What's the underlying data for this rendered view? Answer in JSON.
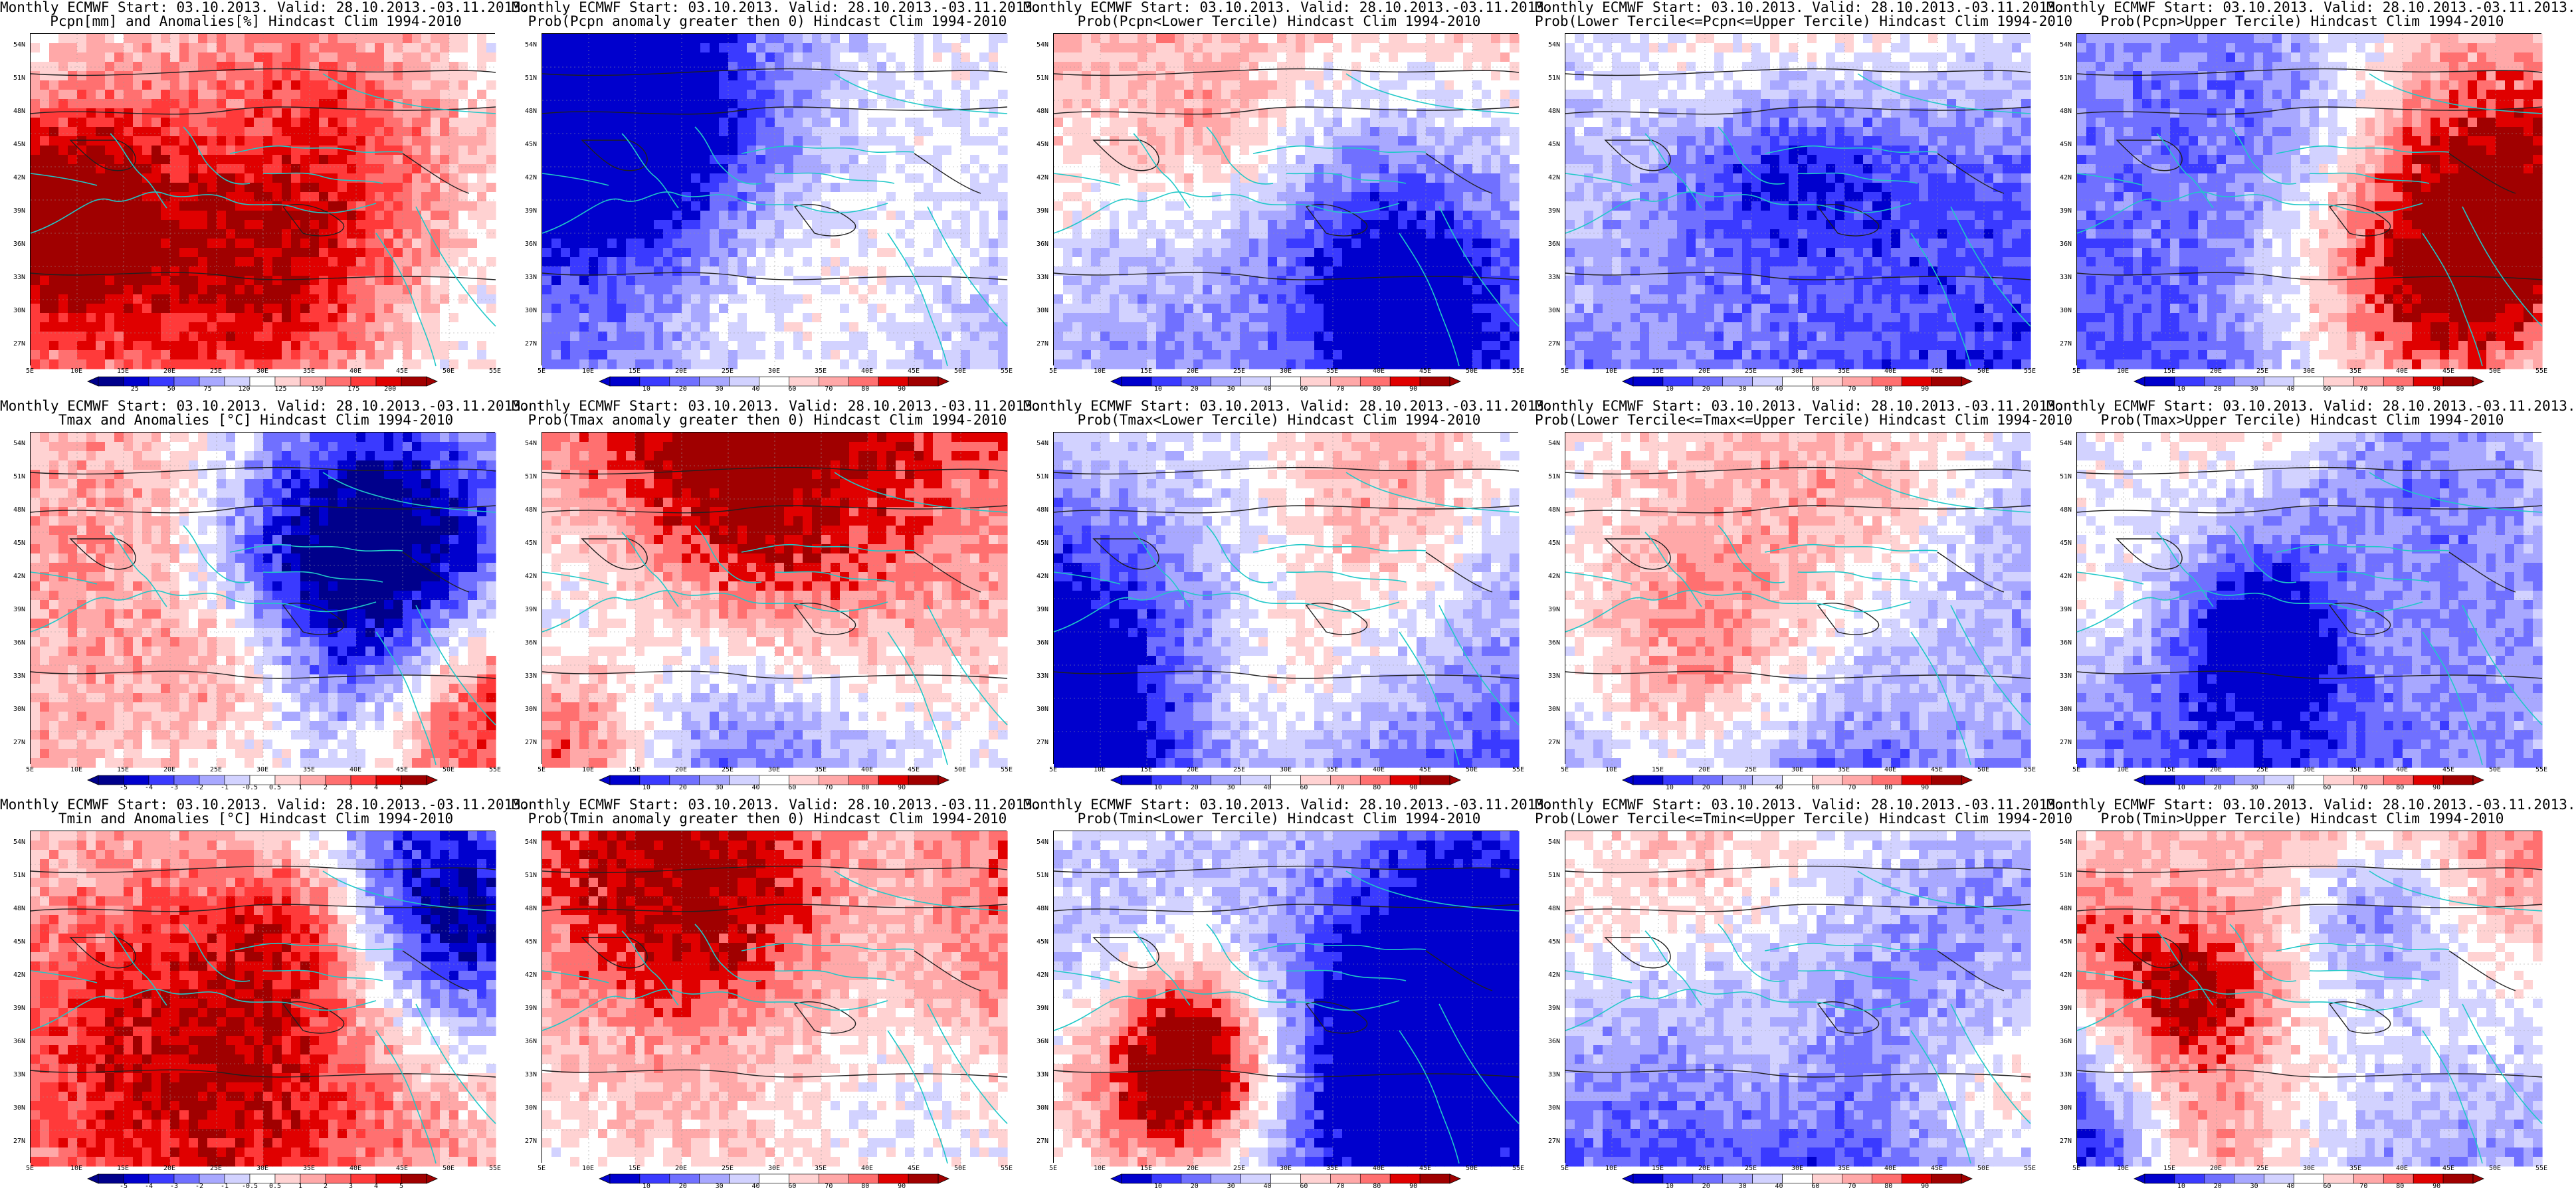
{
  "panels": [
    {
      "title1": "Monthly ECMWF Start: 03.10.2013. Valid: 28.10.2013.-03.11.2013.",
      "title2": "Pcpn[mm] and Anomalies[%] Hindcast Clim 1994-2010",
      "scale": "anom_pcpn",
      "bias": 0.45,
      "seed": 1,
      "cbar_labels": [
        "25",
        "50",
        "75",
        "120",
        "125",
        "150",
        "175",
        "200"
      ]
    },
    {
      "title1": "Monthly ECMWF Start: 03.10.2013. Valid: 28.10.2013.-03.11.2013.",
      "title2": "Prob(Pcpn anomaly greater then 0) Hindcast Clim 1994-2010",
      "scale": "prob",
      "bias": 0.35,
      "seed": 2,
      "cbar_labels": [
        "10",
        "20",
        "30",
        "40",
        "60",
        "70",
        "80",
        "90"
      ]
    },
    {
      "title1": "Monthly ECMWF Start: 03.10.2013. Valid: 28.10.2013.-03.11.2013.",
      "title2": "Prob(Pcpn<Lower Tercile) Hindcast Clim 1994-2010",
      "scale": "prob",
      "bias": 0.55,
      "seed": 3,
      "cbar_labels": [
        "10",
        "20",
        "30",
        "40",
        "60",
        "70",
        "80",
        "90"
      ]
    },
    {
      "title1": "Monthly ECMWF Start: 03.10.2013. Valid: 28.10.2013.-03.11.2013.",
      "title2": "Prob(Lower Tercile<=Pcpn<=Upper Tercile) Hindcast Clim 1994-2010",
      "scale": "prob",
      "bias": 0.25,
      "seed": 4,
      "cbar_labels": [
        "10",
        "20",
        "30",
        "40",
        "60",
        "70",
        "80",
        "90"
      ]
    },
    {
      "title1": "Monthly ECMWF Start: 03.10.2013. Valid: 28.10.2013.-03.11.2013.",
      "title2": "Prob(Pcpn>Upper Tercile) Hindcast Clim 1994-2010",
      "scale": "prob",
      "bias": 0.3,
      "seed": 5,
      "cbar_labels": [
        "10",
        "20",
        "30",
        "40",
        "60",
        "70",
        "80",
        "90"
      ]
    },
    {
      "title1": "Monthly ECMWF Start: 03.10.2013. Valid: 28.10.2013.-03.11.2013.",
      "title2": "Tmax and Anomalies [°C] Hindcast Clim 1994-2010",
      "scale": "anom_temp",
      "bias": 0.58,
      "seed": 6,
      "cbar_labels": [
        "-5",
        "-4",
        "-3",
        "-2",
        "-1",
        "-0.5",
        "0.5",
        "1",
        "2",
        "3",
        "4",
        "5"
      ]
    },
    {
      "title1": "Monthly ECMWF Start: 03.10.2013. Valid: 28.10.2013.-03.11.2013.",
      "title2": "Prob(Tmax anomaly greater then 0) Hindcast Clim 1994-2010",
      "scale": "prob",
      "bias": 0.62,
      "seed": 7,
      "cbar_labels": [
        "10",
        "20",
        "30",
        "40",
        "60",
        "70",
        "80",
        "90"
      ]
    },
    {
      "title1": "Monthly ECMWF Start: 03.10.2013. Valid: 28.10.2013.-03.11.2013.",
      "title2": "Prob(Tmax<Lower Tercile) Hindcast Clim 1994-2010",
      "scale": "prob",
      "bias": 0.28,
      "seed": 8,
      "cbar_labels": [
        "10",
        "20",
        "30",
        "40",
        "60",
        "70",
        "80",
        "90"
      ]
    },
    {
      "title1": "Monthly ECMWF Start: 03.10.2013. Valid: 28.10.2013.-03.11.2013.",
      "title2": "Prob(Lower Tercile<=Tmax<=Upper Tercile) Hindcast Clim 1994-2010",
      "scale": "prob",
      "bias": 0.33,
      "seed": 9,
      "cbar_labels": [
        "10",
        "20",
        "30",
        "40",
        "60",
        "70",
        "80",
        "90"
      ]
    },
    {
      "title1": "Monthly ECMWF Start: 03.10.2013. Valid: 28.10.2013.-03.11.2013.",
      "title2": "Prob(Tmax>Upper Tercile) Hindcast Clim 1994-2010",
      "scale": "prob",
      "bias": 0.45,
      "seed": 10,
      "cbar_labels": [
        "10",
        "20",
        "30",
        "40",
        "60",
        "70",
        "80",
        "90"
      ]
    },
    {
      "title1": "Monthly ECMWF Start: 03.10.2013. Valid: 28.10.2013.-03.11.2013.",
      "title2": "Tmin and Anomalies [°C] Hindcast Clim 1994-2010",
      "scale": "anom_temp",
      "bias": 0.56,
      "seed": 11,
      "cbar_labels": [
        "-5",
        "-4",
        "-3",
        "-2",
        "-1",
        "-0.5",
        "0.5",
        "1",
        "2",
        "3",
        "4",
        "5"
      ]
    },
    {
      "title1": "Monthly ECMWF Start: 03.10.2013. Valid: 28.10.2013.-03.11.2013.",
      "title2": "Prob(Tmin anomaly greater then 0) Hindcast Clim 1994-2010",
      "scale": "prob",
      "bias": 0.6,
      "seed": 12,
      "cbar_labels": [
        "10",
        "20",
        "30",
        "40",
        "60",
        "70",
        "80",
        "90"
      ]
    },
    {
      "title1": "Monthly ECMWF Start: 03.10.2013. Valid: 28.10.2013.-03.11.2013.",
      "title2": "Prob(Tmin<Lower Tercile) Hindcast Clim 1994-2010",
      "scale": "prob",
      "bias": 0.3,
      "seed": 13,
      "cbar_labels": [
        "10",
        "20",
        "30",
        "40",
        "60",
        "70",
        "80",
        "90"
      ]
    },
    {
      "title1": "Monthly ECMWF Start: 03.10.2013. Valid: 28.10.2013.-03.11.2013.",
      "title2": "Prob(Lower Tercile<=Tmin<=Upper Tercile) Hindcast Clim 1994-2010",
      "scale": "prob",
      "bias": 0.3,
      "seed": 14,
      "cbar_labels": [
        "10",
        "20",
        "30",
        "40",
        "60",
        "70",
        "80",
        "90"
      ]
    },
    {
      "title1": "Monthly ECMWF Start: 03.10.2013. Valid: 28.10.2013.-03.11.2013.",
      "title2": "Prob(Tmin>Upper Tercile) Hindcast Clim 1994-2010",
      "scale": "prob",
      "bias": 0.42,
      "seed": 15,
      "cbar_labels": [
        "10",
        "20",
        "30",
        "40",
        "60",
        "70",
        "80",
        "90"
      ]
    }
  ],
  "lat_labels": [
    "54N",
    "51N",
    "48N",
    "45N",
    "42N",
    "39N",
    "36N",
    "33N",
    "30N",
    "27N"
  ],
  "lon_labels": [
    "5E",
    "10E",
    "15E",
    "20E",
    "25E",
    "30E",
    "35E",
    "40E",
    "45E",
    "50E",
    "55E"
  ],
  "colors": {
    "frame": "#000000",
    "coast": "#20c8c8",
    "contour": "#202020",
    "anom_pcpn": [
      "#00008b",
      "#0000cd",
      "#3a3aff",
      "#7070ff",
      "#a8a8ff",
      "#d2d2ff",
      "#ffffff",
      "#ffd2d2",
      "#ffa8a8",
      "#ff7070",
      "#ff3a3a",
      "#e00000",
      "#a00000"
    ],
    "anom_temp": [
      "#00008b",
      "#0000cd",
      "#3a3aff",
      "#7070ff",
      "#a8a8ff",
      "#d2d2ff",
      "#ffffff",
      "#ffd2d2",
      "#ffa8a8",
      "#ff7070",
      "#ff3a3a",
      "#e00000",
      "#a00000"
    ],
    "prob": [
      "#0000cd",
      "#3a3aff",
      "#7070ff",
      "#a8a8ff",
      "#d2d2ff",
      "#ffffff",
      "#ffd2d2",
      "#ffa8a8",
      "#ff7070",
      "#e00000",
      "#a00000"
    ]
  }
}
